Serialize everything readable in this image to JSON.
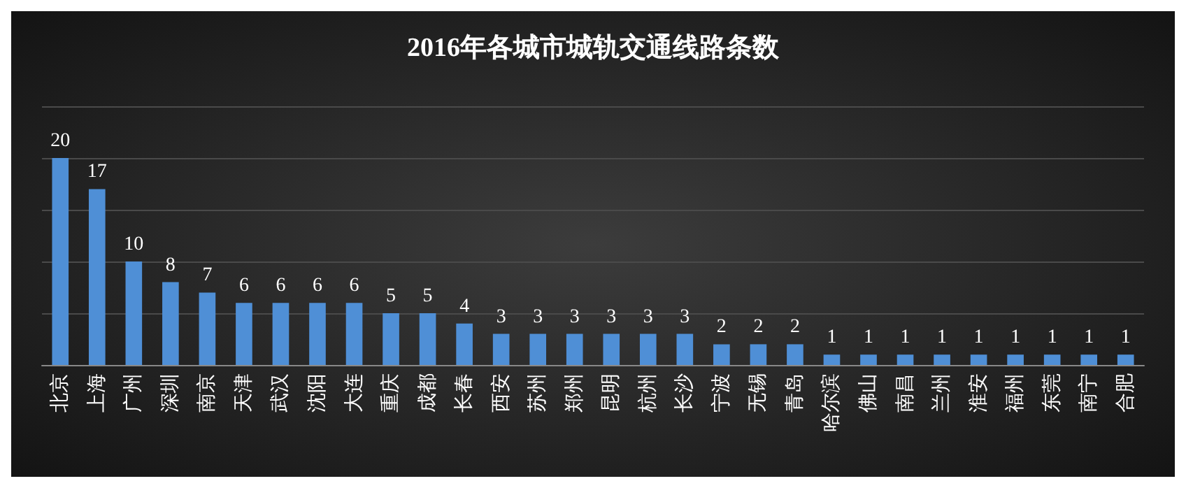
{
  "chart_data": {
    "type": "bar",
    "title": "2016年各城市城轨交通线路条数",
    "categories": [
      "北京",
      "上海",
      "广州",
      "深圳",
      "南京",
      "天津",
      "武汉",
      "沈阳",
      "大连",
      "重庆",
      "成都",
      "长春",
      "西安",
      "苏州",
      "郑州",
      "昆明",
      "杭州",
      "长沙",
      "宁波",
      "无锡",
      "青岛",
      "哈尔滨",
      "佛山",
      "南昌",
      "兰州",
      "淮安",
      "福州",
      "东莞",
      "南宁",
      "合肥"
    ],
    "values": [
      20,
      17,
      10,
      8,
      7,
      6,
      6,
      6,
      6,
      5,
      5,
      4,
      3,
      3,
      3,
      3,
      3,
      3,
      2,
      2,
      2,
      1,
      1,
      1,
      1,
      1,
      1,
      1,
      1,
      1
    ],
    "color": "#4f8fd6",
    "ylim": [
      0,
      25
    ],
    "yticks": [
      {
        "value": 0,
        "label": null
      },
      {
        "value": 5,
        "label": null
      },
      {
        "value": 10,
        "label": null
      },
      {
        "value": 15,
        "label": null
      },
      {
        "value": 20,
        "label": null
      },
      {
        "value": 25,
        "label": null
      }
    ],
    "tick_labels": "x",
    "grid": "y",
    "data_labels": true
  }
}
